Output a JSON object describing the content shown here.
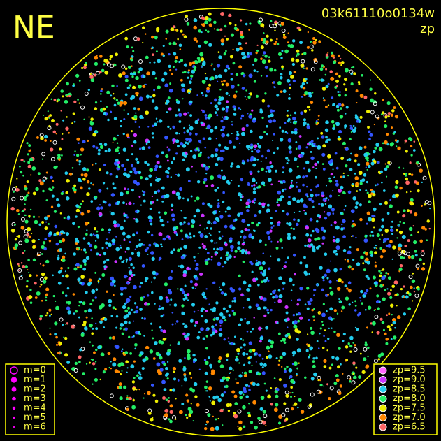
{
  "corner_label": "NE",
  "header": {
    "title": "03k61110o0134w",
    "subtitle": "zp"
  },
  "magnitude_legend": {
    "items": [
      {
        "label": "m=0",
        "size": 5,
        "hollow": true
      },
      {
        "label": "m=1",
        "size": 4.2
      },
      {
        "label": "m=2",
        "size": 3.5
      },
      {
        "label": "m=3",
        "size": 2.8
      },
      {
        "label": "m=4",
        "size": 2.2
      },
      {
        "label": "m=5",
        "size": 1.6
      },
      {
        "label": "m=6",
        "size": 1.1
      }
    ]
  },
  "zp_legend": {
    "items": [
      {
        "label": "zp=9.5",
        "color": "#ff66ff"
      },
      {
        "label": "zp=9.0",
        "color": "#cc33ff"
      },
      {
        "label": "zp=8.5",
        "color": "#22ccee"
      },
      {
        "label": "zp=8.0",
        "color": "#22ee66"
      },
      {
        "label": "zp=7.5",
        "color": "#eeee00"
      },
      {
        "label": "zp=7.0",
        "color": "#ff8800"
      },
      {
        "label": "zp=6.5",
        "color": "#ff6666"
      }
    ]
  }
}
